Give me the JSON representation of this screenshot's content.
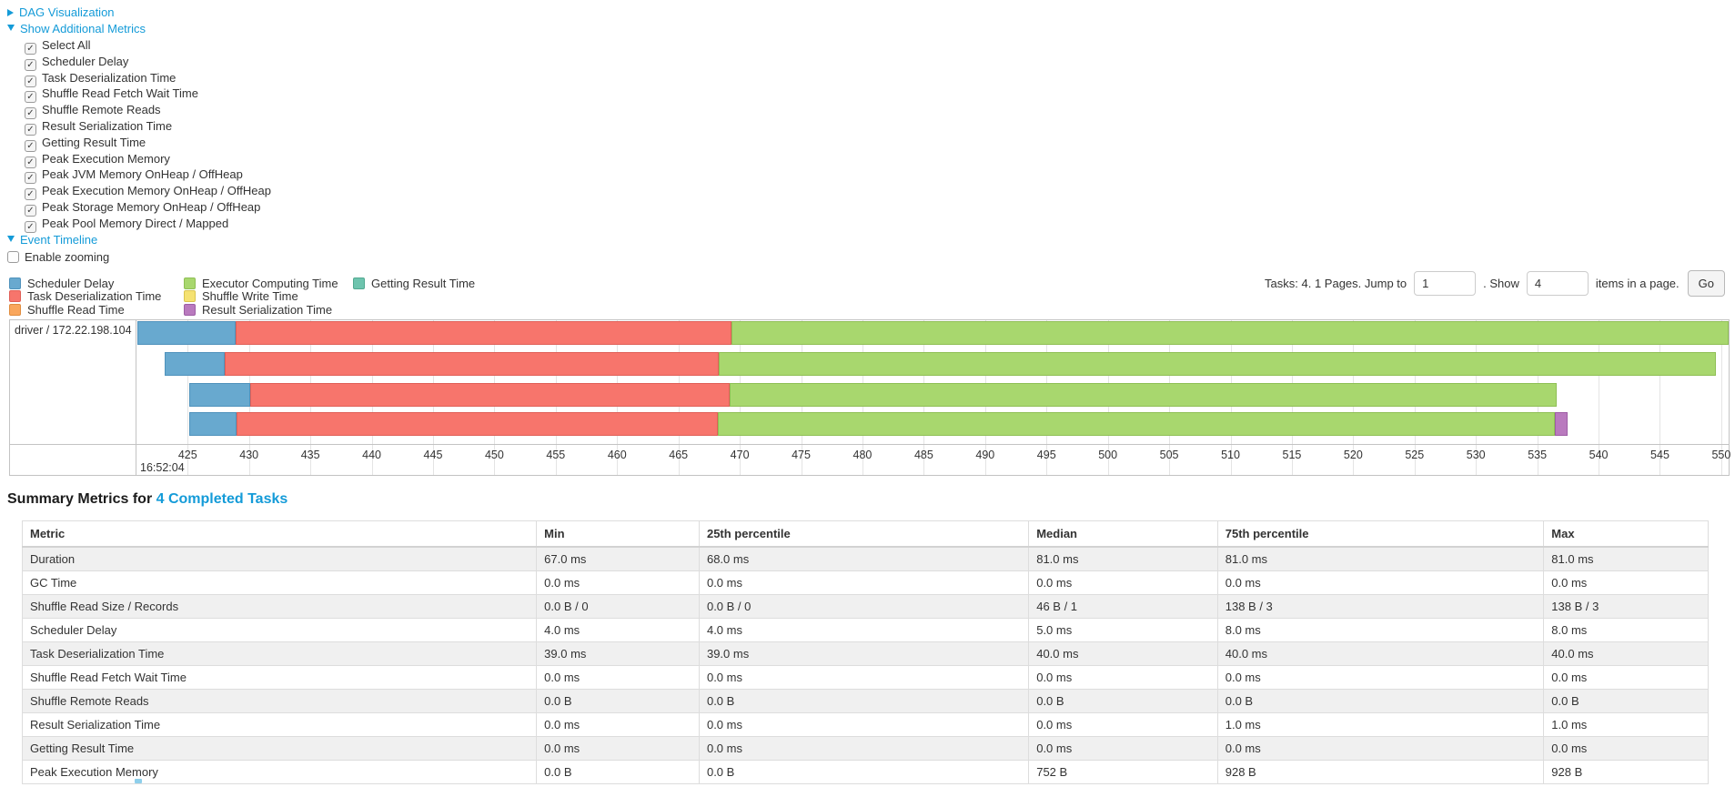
{
  "toggles": {
    "dag": "DAG Visualization",
    "metrics": "Show Additional Metrics",
    "timeline": "Event Timeline",
    "enable_zooming": "Enable zooming"
  },
  "additional_metrics": [
    "Select All",
    "Scheduler Delay",
    "Task Deserialization Time",
    "Shuffle Read Fetch Wait Time",
    "Shuffle Remote Reads",
    "Result Serialization Time",
    "Getting Result Time",
    "Peak Execution Memory",
    "Peak JVM Memory OnHeap / OffHeap",
    "Peak Execution Memory OnHeap / OffHeap",
    "Peak Storage Memory OnHeap / OffHeap",
    "Peak Pool Memory Direct / Mapped"
  ],
  "legend": {
    "columns": [
      [
        "scheduler_delay",
        "task_deserialization",
        "shuffle_read"
      ],
      [
        "executor_computing",
        "shuffle_write",
        "result_serialization"
      ],
      [
        "getting_result"
      ]
    ]
  },
  "pagination": {
    "lead": "Tasks: 4. 1 Pages. Jump to",
    "jump_value": "1",
    "mid": ". Show",
    "show_value": "4",
    "tail": "items in a page.",
    "go": "Go"
  },
  "chart_data": {
    "type": "timeline",
    "group_label": "driver / 172.22.198.104",
    "major_tick_label": "16:52:04",
    "x_unit": "milliseconds within second 16:52:04",
    "window_ms": [
      420.9,
      550.6
    ],
    "ticks_ms": [
      425,
      430,
      435,
      440,
      445,
      450,
      455,
      460,
      465,
      470,
      475,
      480,
      485,
      490,
      495,
      500,
      505,
      510,
      515,
      520,
      525,
      530,
      535,
      540,
      545,
      550
    ],
    "series": {
      "scheduler_delay": {
        "label": "Scheduler Delay",
        "fill": "#68a9cf",
        "stroke": "#4f92bc"
      },
      "task_deserialization": {
        "label": "Task Deserialization Time",
        "fill": "#f7756c",
        "stroke": "#e05f57"
      },
      "shuffle_read": {
        "label": "Shuffle Read Time",
        "fill": "#f9a65c",
        "stroke": "#e08c3e"
      },
      "executor_computing": {
        "label": "Executor Computing Time",
        "fill": "#a8d76e",
        "stroke": "#8fbf55"
      },
      "shuffle_write": {
        "label": "Shuffle Write Time",
        "fill": "#f5e272",
        "stroke": "#d9c54f"
      },
      "result_serialization": {
        "label": "Result Serialization Time",
        "fill": "#b97abe",
        "stroke": "#9e5ea5"
      },
      "getting_result": {
        "label": "Getting Result Time",
        "fill": "#6ec4ae",
        "stroke": "#52a990"
      }
    },
    "tasks": [
      {
        "segments": [
          [
            "scheduler_delay",
            420.9,
            428.9
          ],
          [
            "task_deserialization",
            428.9,
            469.3
          ],
          [
            "executor_computing",
            469.3,
            550.6
          ]
        ]
      },
      {
        "segments": [
          [
            "scheduler_delay",
            423.1,
            428.0
          ],
          [
            "task_deserialization",
            428.0,
            468.3
          ],
          [
            "executor_computing",
            468.3,
            549.6
          ]
        ]
      },
      {
        "segments": [
          [
            "scheduler_delay",
            425.1,
            430.1
          ],
          [
            "task_deserialization",
            430.1,
            469.2
          ],
          [
            "executor_computing",
            469.2,
            536.6
          ]
        ]
      },
      {
        "segments": [
          [
            "scheduler_delay",
            425.1,
            429.0
          ],
          [
            "task_deserialization",
            429.0,
            468.2
          ],
          [
            "executor_computing",
            468.2,
            536.4
          ],
          [
            "result_serialization",
            536.4,
            537.5
          ]
        ]
      }
    ]
  },
  "summary": {
    "title_prefix": "Summary Metrics for",
    "title_link": "4 Completed Tasks",
    "columns": [
      "Metric",
      "Min",
      "25th percentile",
      "Median",
      "75th percentile",
      "Max"
    ],
    "rows": [
      [
        "Duration",
        "67.0 ms",
        "68.0 ms",
        "81.0 ms",
        "81.0 ms",
        "81.0 ms"
      ],
      [
        "GC Time",
        "0.0 ms",
        "0.0 ms",
        "0.0 ms",
        "0.0 ms",
        "0.0 ms"
      ],
      [
        "Shuffle Read Size / Records",
        "0.0 B / 0",
        "0.0 B / 0",
        "46 B / 1",
        "138 B / 3",
        "138 B / 3"
      ],
      [
        "Scheduler Delay",
        "4.0 ms",
        "4.0 ms",
        "5.0 ms",
        "8.0 ms",
        "8.0 ms"
      ],
      [
        "Task Deserialization Time",
        "39.0 ms",
        "39.0 ms",
        "40.0 ms",
        "40.0 ms",
        "40.0 ms"
      ],
      [
        "Shuffle Read Fetch Wait Time",
        "0.0 ms",
        "0.0 ms",
        "0.0 ms",
        "0.0 ms",
        "0.0 ms"
      ],
      [
        "Shuffle Remote Reads",
        "0.0 B",
        "0.0 B",
        "0.0 B",
        "0.0 B",
        "0.0 B"
      ],
      [
        "Result Serialization Time",
        "0.0 ms",
        "0.0 ms",
        "0.0 ms",
        "1.0 ms",
        "1.0 ms"
      ],
      [
        "Getting Result Time",
        "0.0 ms",
        "0.0 ms",
        "0.0 ms",
        "0.0 ms",
        "0.0 ms"
      ],
      [
        "Peak Execution Memory",
        "0.0 B",
        "0.0 B",
        "752 B",
        "928 B",
        "928 B"
      ]
    ]
  }
}
